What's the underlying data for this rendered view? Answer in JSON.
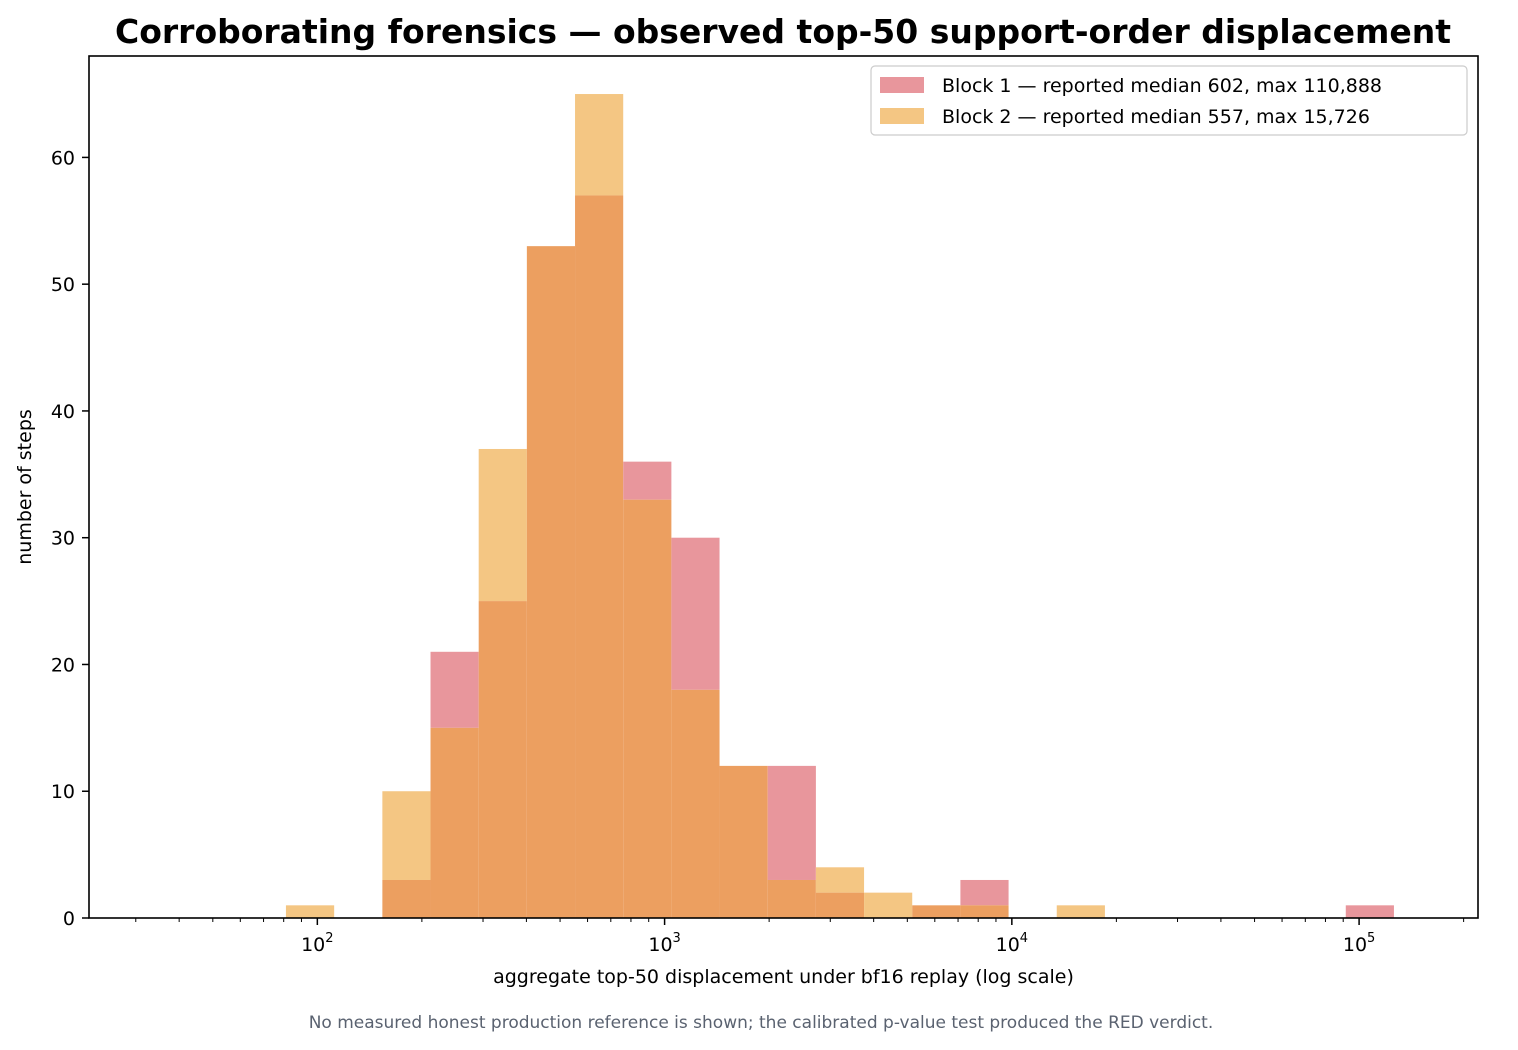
{
  "chart_data": {
    "type": "bar",
    "title": "Corroborating forensics — observed top-50 support-order displacement",
    "xlabel": "aggregate top-50 displacement under bf16 replay (log scale)",
    "ylabel": "number of steps",
    "xscale": "log",
    "xlim": [
      22,
      220000
    ],
    "ylim": [
      0,
      68
    ],
    "xticks": [
      {
        "value": 100,
        "base": "10",
        "exp": "2"
      },
      {
        "value": 1000,
        "base": "10",
        "exp": "3"
      },
      {
        "value": 10000,
        "base": "10",
        "exp": "4"
      },
      {
        "value": 100000,
        "base": "10",
        "exp": "5"
      }
    ],
    "yticks": [
      0,
      10,
      20,
      30,
      40,
      50,
      60
    ],
    "grid": false,
    "legend_position": "top-right",
    "bin_edges": [
      81.2,
      111.8,
      153.9,
      211.8,
      291.5,
      401.2,
      552.2,
      760.0,
      1046.0,
      1439.6,
      1981.4,
      2727.1,
      3753.4,
      5165.9,
      7110.0,
      9785.7,
      13468.3,
      18536.6,
      25512.6,
      35113.7,
      48328.0,
      66515.2,
      91546.4,
      126000.0
    ],
    "series": [
      {
        "name": "Block 1 — reported median 602, max 110,888",
        "color": "#e8969c",
        "values": [
          0,
          0,
          3,
          21,
          25,
          53,
          57,
          36,
          30,
          12,
          12,
          2,
          0,
          1,
          3,
          0,
          0,
          0,
          0,
          0,
          0,
          0,
          1
        ]
      },
      {
        "name": "Block 2 — reported median 557, max 15,726",
        "color": "#f4c683",
        "values": [
          1,
          0,
          10,
          15,
          37,
          53,
          65,
          33,
          18,
          12,
          3,
          4,
          2,
          1,
          1,
          0,
          1,
          0,
          0,
          0,
          0,
          0,
          0
        ]
      }
    ],
    "overlap_color": "#ec9f60",
    "annotation": "No measured honest production reference is shown; the calibrated p-value test produced the RED verdict."
  }
}
